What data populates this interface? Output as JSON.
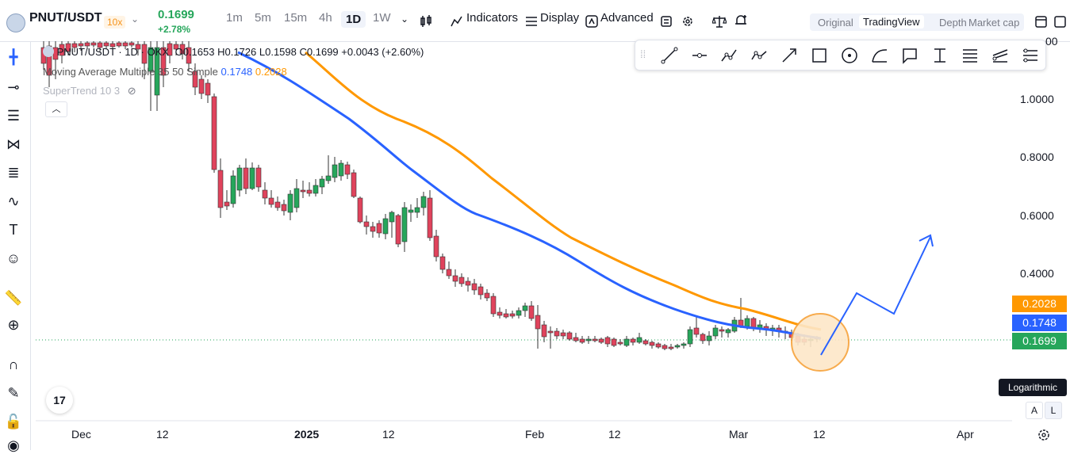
{
  "header": {
    "symbol": "PNUT/USDT",
    "leverage": "10x",
    "last_price": "0.1699",
    "change_pct": "+2.78%",
    "timeframes": [
      "1m",
      "5m",
      "15m",
      "4h",
      "1D",
      "1W"
    ],
    "selected_timeframe": "1D",
    "indicators_label": "Indicators",
    "display_label": "Display",
    "advanced_label": "Advanced",
    "view_modes": [
      "Original",
      "TradingView",
      "Depth",
      "Market cap"
    ],
    "selected_view": "TradingView"
  },
  "legend": {
    "title": "PNUT/USDT · 1D · OKX",
    "open": "O0.1653",
    "high": "H0.1726",
    "low": "L0.1598",
    "close": "C0.1699",
    "change": "+0.0043 (+2.60%)",
    "ma_label": "Moving Average Multiple 35 50 Simple",
    "ma_35": "0.1748",
    "ma_50": "0.2028",
    "supertrend_label": "SuperTrend 10 3"
  },
  "price_axis": {
    "ticks": [
      "1.0000",
      "0.8000",
      "0.6000",
      "0.4000"
    ],
    "top_partial": "00",
    "badges": [
      {
        "value": "0.2028",
        "color": "#ff9800"
      },
      {
        "value": "0.1748",
        "color": "#2962ff"
      },
      {
        "value": "0.1699",
        "color": "#26a65b"
      }
    ],
    "scale_tooltip": "Logarithmic",
    "auto_label": "A",
    "log_label": "L"
  },
  "time_axis": {
    "ticks": [
      "Dec",
      "12",
      "2025",
      "12",
      "Feb",
      "12",
      "Mar",
      "12",
      "Apr"
    ]
  },
  "colors": {
    "up": "#26a65b",
    "down": "#e0435c",
    "ma35": "#2962ff",
    "ma50": "#ff9800",
    "arrow": "#2962ff",
    "highlight_fill": "#fde7c8",
    "highlight_stroke": "#f7a23a"
  },
  "icons": {
    "left_toolbar": [
      "crosshair-icon",
      "horizontal-line-icon",
      "fib-icon",
      "pattern-icon",
      "parallel-lines-icon",
      "trend-icon",
      "text-icon",
      "emoji-icon",
      "ruler-icon",
      "zoom-icon",
      "magnet-icon",
      "pencil-lock-icon",
      "lock-icon",
      "eye-icon"
    ],
    "drawing_toolbar": [
      "trend-line-icon",
      "horizontal-ray-icon",
      "polyline-icon",
      "path-icon",
      "arrow-icon",
      "rectangle-icon",
      "circle-icon",
      "arc-icon",
      "callout-icon",
      "price-range-icon",
      "fib-retracement-icon",
      "fib-fan-icon",
      "gann-icon"
    ]
  }
}
